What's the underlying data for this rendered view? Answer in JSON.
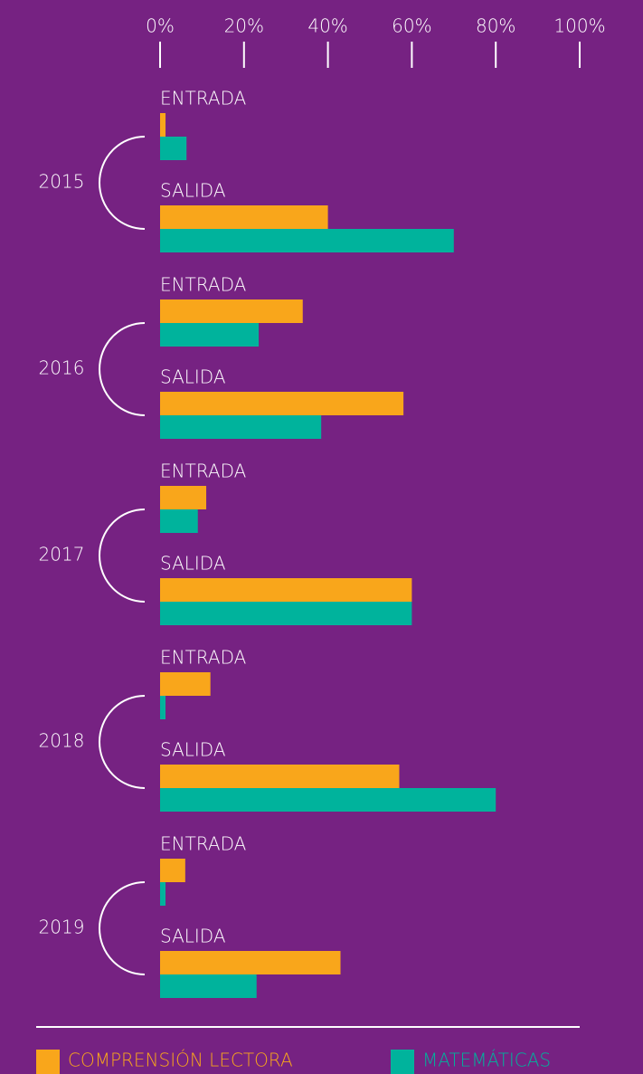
{
  "chart_data": {
    "type": "bar",
    "orientation": "horizontal",
    "groups": [
      "2015",
      "2016",
      "2017",
      "2018",
      "2019"
    ],
    "categories": [
      "ENTRADA",
      "SALIDA",
      "ENTRADA",
      "SALIDA",
      "ENTRADA",
      "SALIDA",
      "ENTRADA",
      "SALIDA",
      "ENTRADA",
      "SALIDA"
    ],
    "series": [
      {
        "name": "COMPRENSIÓN LECTORA",
        "color": "#f9a61b",
        "values": [
          1.3,
          40,
          34,
          58,
          11,
          60,
          12,
          57,
          6,
          43
        ]
      },
      {
        "name": "MATEMÁTICAS",
        "color": "#00b39c",
        "values": [
          6.3,
          70,
          23.5,
          38.4,
          9,
          60,
          1.3,
          80,
          1.3,
          23
        ]
      }
    ],
    "xlim": [
      0,
      100
    ],
    "xticks": [
      {
        "value": 0,
        "label": "0%"
      },
      {
        "value": 20,
        "label": "20%"
      },
      {
        "value": 40,
        "label": "40%"
      },
      {
        "value": 60,
        "label": "60%"
      },
      {
        "value": 80,
        "label": "80%"
      },
      {
        "value": 100,
        "label": "100%"
      }
    ]
  }
}
